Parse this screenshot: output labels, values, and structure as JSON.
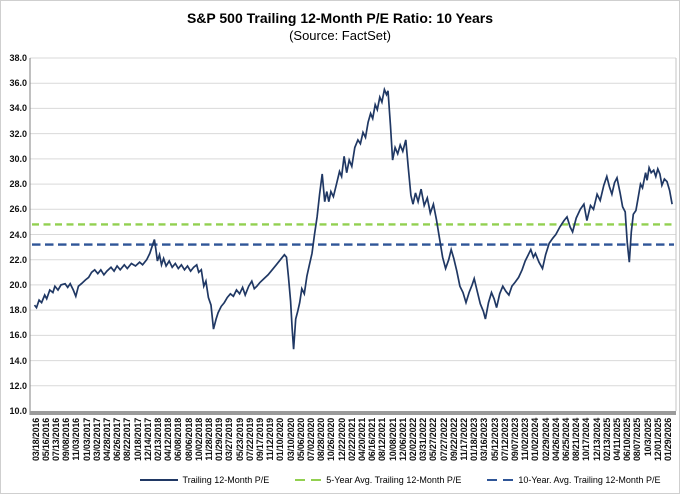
{
  "title": "S&P 500 Trailing 12-Month P/E Ratio: 10 Years",
  "subtitle": "(Source: FactSet)",
  "colors": {
    "main_line": "#203864",
    "avg5_line": "#92d050",
    "avg10_line": "#2f5597",
    "gridline": "#d9d9d9",
    "plot_border": "#c6c6c6",
    "left_spine": "#808080",
    "axis_bar": "#9b9b9b",
    "text": "#000000"
  },
  "chart_data": {
    "type": "line",
    "title": "S&P 500 Trailing 12-Month P/E Ratio: 10 Years",
    "subtitle": "(Source: FactSet)",
    "grid": true,
    "legend_position": "bottom",
    "y_axis": {
      "min": 10.0,
      "max": 38.0,
      "step": 2.0,
      "format": "0.0"
    },
    "x_tick_labels": [
      "03/18/2016",
      "05/16/2016",
      "07/13/2016",
      "09/08/2016",
      "11/03/2016",
      "01/03/2017",
      "03/02/2017",
      "04/28/2017",
      "06/26/2017",
      "08/22/2017",
      "10/18/2017",
      "12/14/2017",
      "02/13/2018",
      "04/12/2018",
      "06/08/2018",
      "08/06/2018",
      "10/02/2018",
      "11/28/2018",
      "01/29/2019",
      "03/27/2019",
      "05/23/2019",
      "07/22/2019",
      "09/17/2019",
      "11/12/2019",
      "01/10/2020",
      "03/10/2020",
      "05/06/2020",
      "07/02/2020",
      "08/28/2020",
      "10/26/2020",
      "12/22/2020",
      "02/22/2021",
      "04/20/2021",
      "06/16/2021",
      "08/12/2021",
      "10/08/2021",
      "12/06/2021",
      "02/02/2022",
      "03/31/2022",
      "05/27/2022",
      "07/27/2022",
      "09/22/2022",
      "11/17/2022",
      "01/18/2023",
      "03/16/2023",
      "05/12/2023",
      "07/12/2023",
      "09/07/2023",
      "11/02/2023",
      "01/02/2024",
      "02/29/2024",
      "04/26/2024",
      "06/25/2024",
      "08/21/2024",
      "10/17/2024",
      "12/13/2024",
      "02/13/2025",
      "04/11/2025",
      "06/10/2025",
      "08/07/2025",
      "10/3/2025",
      "12/01/2025",
      "01/29/2026"
    ],
    "series": [
      {
        "name": "Trailing 12-Month P/E",
        "style": "solid",
        "color": "#203864",
        "points": [
          [
            0,
            18.4
          ],
          [
            0.2,
            18.2
          ],
          [
            0.45,
            18.8
          ],
          [
            0.7,
            18.6
          ],
          [
            1,
            19.2
          ],
          [
            1.2,
            18.9
          ],
          [
            1.5,
            19.6
          ],
          [
            1.8,
            19.4
          ],
          [
            2,
            19.9
          ],
          [
            2.3,
            19.6
          ],
          [
            2.6,
            20
          ],
          [
            3,
            20.1
          ],
          [
            3.25,
            19.8
          ],
          [
            3.5,
            20.1
          ],
          [
            3.8,
            19.6
          ],
          [
            4.05,
            19.1
          ],
          [
            4.3,
            19.9
          ],
          [
            4.6,
            20.1
          ],
          [
            5,
            20.4
          ],
          [
            5.3,
            20.6
          ],
          [
            5.6,
            21
          ],
          [
            5.9,
            21.2
          ],
          [
            6.2,
            20.9
          ],
          [
            6.5,
            21.2
          ],
          [
            6.8,
            20.8
          ],
          [
            7.1,
            21.1
          ],
          [
            7.5,
            21.4
          ],
          [
            7.8,
            21.1
          ],
          [
            8.1,
            21.5
          ],
          [
            8.4,
            21.2
          ],
          [
            8.8,
            21.6
          ],
          [
            9.1,
            21.3
          ],
          [
            9.5,
            21.7
          ],
          [
            9.9,
            21.5
          ],
          [
            10.3,
            21.8
          ],
          [
            10.6,
            21.6
          ],
          [
            11,
            22
          ],
          [
            11.3,
            22.5
          ],
          [
            11.55,
            23.1
          ],
          [
            11.75,
            23.6
          ],
          [
            11.9,
            22.8
          ],
          [
            12.05,
            21.9
          ],
          [
            12.25,
            22.4
          ],
          [
            12.45,
            21.6
          ],
          [
            12.65,
            22.1
          ],
          [
            12.9,
            21.5
          ],
          [
            13.2,
            21.9
          ],
          [
            13.5,
            21.4
          ],
          [
            13.8,
            21.7
          ],
          [
            14.1,
            21.3
          ],
          [
            14.4,
            21.6
          ],
          [
            14.7,
            21.2
          ],
          [
            15,
            21.5
          ],
          [
            15.3,
            21.1
          ],
          [
            15.6,
            21.4
          ],
          [
            15.9,
            21.6
          ],
          [
            16.1,
            21
          ],
          [
            16.35,
            21.2
          ],
          [
            16.6,
            19.9
          ],
          [
            16.8,
            20.3
          ],
          [
            17.05,
            19
          ],
          [
            17.3,
            18.4
          ],
          [
            17.55,
            16.5
          ],
          [
            17.8,
            17.3
          ],
          [
            18,
            17.8
          ],
          [
            18.3,
            18.3
          ],
          [
            18.6,
            18.6
          ],
          [
            18.9,
            19
          ],
          [
            19.2,
            19.3
          ],
          [
            19.5,
            19.1
          ],
          [
            19.8,
            19.6
          ],
          [
            20.1,
            19.3
          ],
          [
            20.4,
            19.8
          ],
          [
            20.65,
            19.2
          ],
          [
            21,
            19.9
          ],
          [
            21.3,
            20.3
          ],
          [
            21.55,
            19.7
          ],
          [
            21.8,
            19.9
          ],
          [
            22.1,
            20.2
          ],
          [
            22.5,
            20.5
          ],
          [
            22.9,
            20.8
          ],
          [
            23.3,
            21.2
          ],
          [
            23.7,
            21.6
          ],
          [
            24.1,
            22
          ],
          [
            24.5,
            22.4
          ],
          [
            24.7,
            22.2
          ],
          [
            24.9,
            20.6
          ],
          [
            25.1,
            18.7
          ],
          [
            25.25,
            16.6
          ],
          [
            25.4,
            14.9
          ],
          [
            25.6,
            17.3
          ],
          [
            25.8,
            17.9
          ],
          [
            26,
            18.6
          ],
          [
            26.2,
            19.7
          ],
          [
            26.45,
            19.3
          ],
          [
            26.7,
            20.7
          ],
          [
            26.95,
            21.6
          ],
          [
            27.2,
            22.5
          ],
          [
            27.45,
            24
          ],
          [
            27.7,
            25.4
          ],
          [
            27.95,
            27.2
          ],
          [
            28.2,
            28.8
          ],
          [
            28.45,
            26.6
          ],
          [
            28.65,
            27.4
          ],
          [
            28.85,
            26.6
          ],
          [
            29.05,
            27.4
          ],
          [
            29.3,
            27
          ],
          [
            29.6,
            28
          ],
          [
            29.9,
            29
          ],
          [
            30.1,
            28.6
          ],
          [
            30.35,
            30.2
          ],
          [
            30.6,
            28.9
          ],
          [
            30.85,
            29.9
          ],
          [
            31.1,
            29.4
          ],
          [
            31.4,
            30.9
          ],
          [
            31.7,
            31.5
          ],
          [
            31.95,
            31.2
          ],
          [
            32.2,
            32.1
          ],
          [
            32.45,
            31.7
          ],
          [
            32.7,
            32.9
          ],
          [
            32.95,
            33.6
          ],
          [
            33.15,
            33.2
          ],
          [
            33.4,
            34.3
          ],
          [
            33.6,
            33.9
          ],
          [
            33.85,
            34.9
          ],
          [
            34.05,
            34.5
          ],
          [
            34.3,
            35.5
          ],
          [
            34.5,
            35.1
          ],
          [
            34.65,
            35.4
          ],
          [
            34.9,
            32.6
          ],
          [
            35.1,
            29.9
          ],
          [
            35.35,
            30.9
          ],
          [
            35.6,
            30.4
          ],
          [
            35.85,
            31.1
          ],
          [
            36.1,
            30.6
          ],
          [
            36.4,
            31.5
          ],
          [
            36.65,
            29.2
          ],
          [
            36.9,
            27.1
          ],
          [
            37.1,
            26.4
          ],
          [
            37.35,
            27.3
          ],
          [
            37.6,
            26.6
          ],
          [
            37.9,
            27.6
          ],
          [
            38.2,
            26.3
          ],
          [
            38.5,
            26.9
          ],
          [
            38.8,
            25.7
          ],
          [
            39.1,
            26.4
          ],
          [
            39.4,
            25.2
          ],
          [
            39.7,
            23.7
          ],
          [
            40,
            22.2
          ],
          [
            40.3,
            21.3
          ],
          [
            40.6,
            22
          ],
          [
            40.85,
            22.8
          ],
          [
            41.1,
            22.1
          ],
          [
            41.4,
            21.1
          ],
          [
            41.7,
            19.9
          ],
          [
            42,
            19.4
          ],
          [
            42.3,
            18.6
          ],
          [
            42.6,
            19.4
          ],
          [
            42.9,
            20
          ],
          [
            43.1,
            20.5
          ],
          [
            43.4,
            19.5
          ],
          [
            43.7,
            18.5
          ],
          [
            44,
            17.9
          ],
          [
            44.2,
            17.3
          ],
          [
            44.5,
            18.6
          ],
          [
            44.8,
            19.4
          ],
          [
            45.05,
            18.9
          ],
          [
            45.3,
            18.2
          ],
          [
            45.6,
            19.3
          ],
          [
            45.9,
            19.9
          ],
          [
            46.2,
            19.5
          ],
          [
            46.5,
            19.2
          ],
          [
            46.8,
            19.9
          ],
          [
            47.1,
            20.2
          ],
          [
            47.45,
            20.6
          ],
          [
            47.8,
            21.2
          ],
          [
            48.1,
            21.9
          ],
          [
            48.4,
            22.4
          ],
          [
            48.65,
            22.8
          ],
          [
            48.9,
            22.2
          ],
          [
            49.1,
            22.5
          ],
          [
            49.45,
            21.8
          ],
          [
            49.8,
            21.3
          ],
          [
            50.1,
            22.4
          ],
          [
            50.45,
            23.3
          ],
          [
            50.8,
            23.7
          ],
          [
            51.1,
            24
          ],
          [
            51.5,
            24.6
          ],
          [
            51.9,
            25.1
          ],
          [
            52.2,
            25.4
          ],
          [
            52.5,
            24.6
          ],
          [
            52.75,
            24.2
          ],
          [
            53.1,
            25.3
          ],
          [
            53.5,
            26
          ],
          [
            53.85,
            26.4
          ],
          [
            54.15,
            25.1
          ],
          [
            54.5,
            26.3
          ],
          [
            54.8,
            26
          ],
          [
            55.15,
            27.2
          ],
          [
            55.45,
            26.7
          ],
          [
            55.8,
            27.9
          ],
          [
            56.1,
            28.6
          ],
          [
            56.35,
            27.8
          ],
          [
            56.6,
            27.2
          ],
          [
            56.85,
            28.1
          ],
          [
            57.1,
            28.5
          ],
          [
            57.4,
            27.3
          ],
          [
            57.65,
            26.2
          ],
          [
            57.9,
            25.8
          ],
          [
            58.1,
            23.4
          ],
          [
            58.3,
            21.8
          ],
          [
            58.5,
            24.2
          ],
          [
            58.7,
            25.6
          ],
          [
            58.95,
            25.9
          ],
          [
            59.15,
            26.8
          ],
          [
            59.4,
            28
          ],
          [
            59.6,
            27.7
          ],
          [
            59.9,
            28.9
          ],
          [
            60.05,
            28.3
          ],
          [
            60.25,
            29.3
          ],
          [
            60.45,
            28.9
          ],
          [
            60.7,
            29.1
          ],
          [
            60.9,
            28.6
          ],
          [
            61.1,
            29.2
          ],
          [
            61.3,
            28.8
          ],
          [
            61.5,
            27.9
          ],
          [
            61.75,
            28.4
          ],
          [
            62,
            28.2
          ],
          [
            62.25,
            27.5
          ],
          [
            62.5,
            26.4
          ]
        ]
      },
      {
        "name": "5-Year Avg. Trailing 12-Month P/E",
        "style": "dashed",
        "color": "#92d050",
        "value": 24.8
      },
      {
        "name": "10-Year. Avg. Trailing 12-Month P/E",
        "style": "dashed",
        "color": "#2f5597",
        "value": 23.2
      }
    ]
  }
}
